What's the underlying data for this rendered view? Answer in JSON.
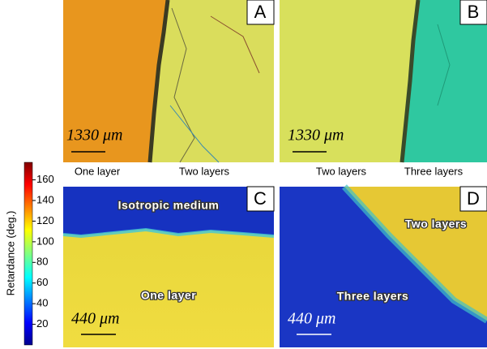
{
  "panels": [
    {
      "letter": "A",
      "scale_bar": "1330 μm",
      "below_labels": [
        "One layer",
        "Two layers"
      ]
    },
    {
      "letter": "B",
      "scale_bar": "1330 μm",
      "below_labels": [
        "Two layers",
        "Three layers"
      ]
    },
    {
      "letter": "C",
      "scale_bar": "440 μm",
      "overlay_labels": [
        "Isotropic medium",
        "One layer"
      ]
    },
    {
      "letter": "D",
      "scale_bar": "440 μm",
      "overlay_labels": [
        "Two layers",
        "Three layers"
      ]
    }
  ],
  "colorbar": {
    "label": "Retardance (deg.)",
    "range": [
      0,
      177
    ],
    "ticks": [
      20,
      40,
      60,
      80,
      100,
      120,
      140,
      160
    ]
  }
}
